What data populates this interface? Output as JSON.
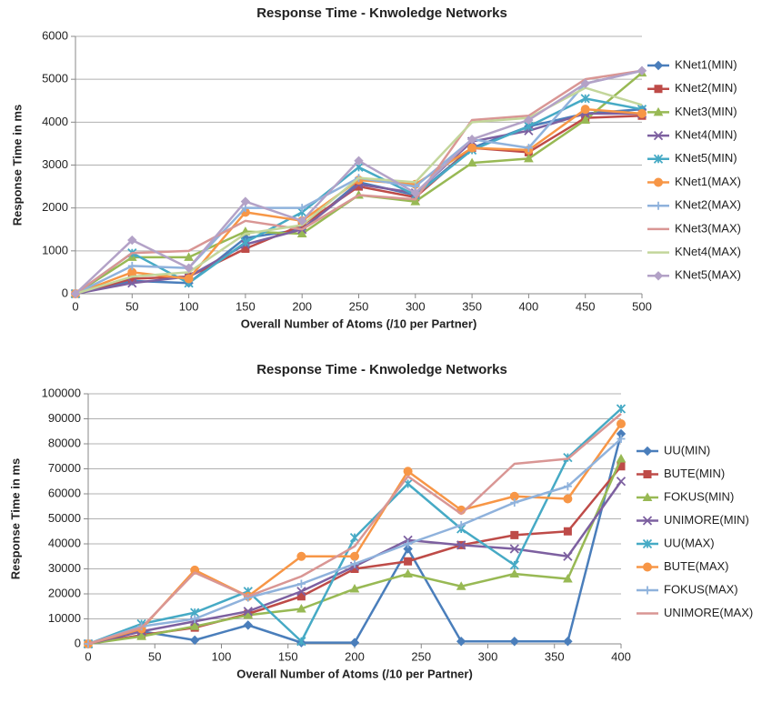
{
  "chart_data": [
    {
      "type": "line",
      "title": "Response Time - Knwoledge Networks",
      "xlabel": "Overall Number of Atoms (/10 per Partner)",
      "ylabel": "Response Time in ms",
      "x": [
        0,
        50,
        100,
        150,
        200,
        250,
        300,
        350,
        400,
        450,
        500
      ],
      "xlim": [
        0,
        500
      ],
      "xticks": [
        0,
        50,
        100,
        150,
        200,
        250,
        300,
        350,
        400,
        450,
        500
      ],
      "ylim": [
        0,
        6000
      ],
      "yticks": [
        0,
        1000,
        2000,
        3000,
        4000,
        5000,
        6000
      ],
      "grid": true,
      "legend": "right",
      "series": [
        {
          "name": "KNet1(MIN)",
          "color": "#4a7ebb",
          "marker": "diamond",
          "values": [
            0,
            300,
            250,
            1300,
            1500,
            2600,
            2300,
            3400,
            3900,
            4200,
            4300
          ]
        },
        {
          "name": "KNet2(MIN)",
          "color": "#be4b48",
          "marker": "square",
          "values": [
            0,
            350,
            400,
            1050,
            1600,
            2500,
            2250,
            3400,
            3300,
            4100,
            4150
          ]
        },
        {
          "name": "KNet3(MIN)",
          "color": "#98b954",
          "marker": "triangle",
          "values": [
            0,
            850,
            850,
            1450,
            1400,
            2300,
            2150,
            3050,
            3150,
            4050,
            5150
          ]
        },
        {
          "name": "KNet4(MIN)",
          "color": "#7d60a0",
          "marker": "x",
          "values": [
            0,
            250,
            400,
            1150,
            1500,
            2550,
            2350,
            3550,
            3800,
            4200,
            4200
          ]
        },
        {
          "name": "KNet5(MIN)",
          "color": "#46aac5",
          "marker": "star",
          "values": [
            0,
            950,
            250,
            1200,
            1900,
            2950,
            2300,
            3350,
            3900,
            4550,
            4300
          ]
        },
        {
          "name": "KNet1(MAX)",
          "color": "#f79646",
          "marker": "circle",
          "values": [
            0,
            500,
            350,
            1900,
            1700,
            2650,
            2550,
            3400,
            3350,
            4300,
            4200
          ]
        },
        {
          "name": "KNet2(MAX)",
          "color": "#8fb2dc",
          "marker": "plus",
          "values": [
            0,
            650,
            600,
            2000,
            2000,
            2700,
            2500,
            3600,
            3400,
            4900,
            5200
          ]
        },
        {
          "name": "KNet3(MAX)",
          "color": "#d99694",
          "marker": "none",
          "values": [
            0,
            950,
            1000,
            1700,
            1500,
            2300,
            2200,
            4050,
            4150,
            5000,
            5200
          ]
        },
        {
          "name": "KNet4(MAX)",
          "color": "#c3d69b",
          "marker": "none",
          "values": [
            0,
            400,
            500,
            1400,
            1600,
            2700,
            2600,
            4000,
            4100,
            4800,
            4400
          ]
        },
        {
          "name": "KNet5(MAX)",
          "color": "#b3a2c7",
          "marker": "diamond",
          "values": [
            0,
            1250,
            600,
            2150,
            1700,
            3100,
            2350,
            3600,
            4050,
            4900,
            5200
          ]
        }
      ]
    },
    {
      "type": "line",
      "title": "Response Time - Knwoledge Networks",
      "xlabel": "Overall Number of Atoms (/10 per Partner)",
      "ylabel": "Response Time in ms",
      "x": [
        0,
        40,
        80,
        120,
        160,
        200,
        240,
        280,
        320,
        360,
        400
      ],
      "xlim": [
        0,
        400
      ],
      "xticks": [
        0,
        50,
        100,
        150,
        200,
        250,
        300,
        350,
        400
      ],
      "ylim": [
        0,
        100000
      ],
      "yticks": [
        0,
        10000,
        20000,
        30000,
        40000,
        50000,
        60000,
        70000,
        80000,
        90000,
        100000
      ],
      "grid": true,
      "legend": "right",
      "series": [
        {
          "name": "UU(MIN)",
          "color": "#4a7ebb",
          "marker": "diamond",
          "values": [
            0,
            5000,
            1500,
            7500,
            500,
            500,
            38000,
            1000,
            1000,
            1000,
            84000
          ]
        },
        {
          "name": "BUTE(MIN)",
          "color": "#be4b48",
          "marker": "square",
          "values": [
            0,
            3500,
            6500,
            12000,
            19000,
            30000,
            33000,
            39500,
            43500,
            45000,
            71000
          ]
        },
        {
          "name": "FOKUS(MIN)",
          "color": "#98b954",
          "marker": "triangle",
          "values": [
            0,
            3000,
            7000,
            11500,
            14000,
            22000,
            28000,
            23000,
            28000,
            26000,
            74000
          ]
        },
        {
          "name": "UNIMORE(MIN)",
          "color": "#7d60a0",
          "marker": "x",
          "values": [
            0,
            5000,
            9000,
            13000,
            21000,
            31000,
            41500,
            39500,
            38000,
            35000,
            65000
          ]
        },
        {
          "name": "UU(MAX)",
          "color": "#46aac5",
          "marker": "star",
          "values": [
            0,
            8000,
            12500,
            21000,
            1000,
            42500,
            64000,
            46000,
            31500,
            74500,
            94000
          ]
        },
        {
          "name": "BUTE(MAX)",
          "color": "#f79646",
          "marker": "circle",
          "values": [
            0,
            6000,
            29500,
            19000,
            35000,
            35000,
            69000,
            53500,
            59000,
            58000,
            88000
          ]
        },
        {
          "name": "FOKUS(MAX)",
          "color": "#8fb2dc",
          "marker": "plus",
          "values": [
            0,
            7000,
            10000,
            18500,
            24000,
            32000,
            40000,
            47500,
            56500,
            63000,
            82000
          ]
        },
        {
          "name": "UNIMORE(MAX)",
          "color": "#d99694",
          "marker": "none",
          "values": [
            0,
            6500,
            28500,
            19000,
            27000,
            39000,
            67000,
            52000,
            72000,
            74000,
            92000
          ]
        }
      ]
    }
  ]
}
